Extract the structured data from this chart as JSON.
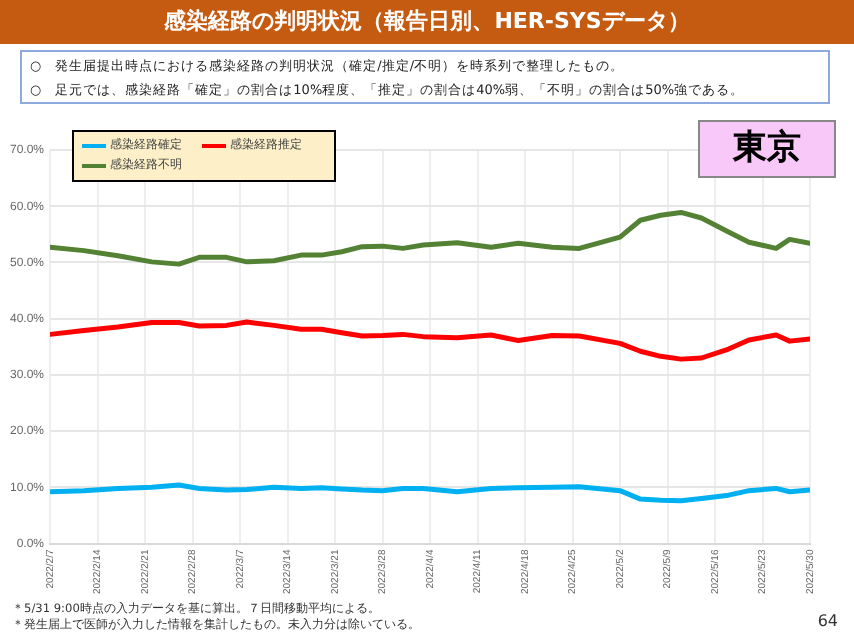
{
  "chart_data": {
    "type": "line",
    "title": "感染経路の判明状況（報告日別、HER-SYSデータ）",
    "annotations": [
      "○　発生届提出時点における感染経路の判明状況（確定/推定/不明）を時系列で整理したもの。",
      "○　足元では、感染経路「確定」の割合は10%程度、「推定」の割合は40%弱、「不明」の割合は50%強である。",
      "東京",
      "＊5/31 9:00時点の入力データを基に算出。７日間移動平均による。",
      "＊発生届上で医師が入力した情報を集計したもの。未入力分は除いている。",
      "64"
    ],
    "x": [
      "2022-02-07",
      "2022-02-12",
      "2022-02-17",
      "2022-02-22",
      "2022-02-26",
      "2022-03-01",
      "2022-03-05",
      "2022-03-08",
      "2022-03-12",
      "2022-03-16",
      "2022-03-19",
      "2022-03-22",
      "2022-03-25",
      "2022-03-28",
      "2022-03-31",
      "2022-04-03",
      "2022-04-08",
      "2022-04-13",
      "2022-04-17",
      "2022-04-22",
      "2022-04-26",
      "2022-05-02",
      "2022-05-05",
      "2022-05-08",
      "2022-05-11",
      "2022-05-14",
      "2022-05-18",
      "2022-05-21",
      "2022-05-25",
      "2022-05-27",
      "2022-05-30"
    ],
    "series": [
      {
        "name": "感染経路確定",
        "color": "#00b0f0",
        "values": [
          9.2,
          9.4,
          9.8,
          10.0,
          10.4,
          9.8,
          9.5,
          9.6,
          10.0,
          9.8,
          9.9,
          9.7,
          9.5,
          9.4,
          9.8,
          9.8,
          9.2,
          9.8,
          9.9,
          10.0,
          10.1,
          9.4,
          7.9,
          7.7,
          7.6,
          8.0,
          8.6,
          9.4,
          9.8,
          9.2,
          9.5
        ]
      },
      {
        "name": "感染経路推定",
        "color": "#ff0000",
        "values": [
          37.2,
          37.9,
          38.5,
          39.3,
          39.3,
          38.7,
          38.8,
          39.4,
          38.8,
          38.1,
          38.1,
          37.5,
          36.9,
          37.0,
          37.2,
          36.8,
          36.6,
          37.1,
          36.1,
          37.0,
          36.9,
          35.6,
          34.2,
          33.3,
          32.8,
          33.0,
          34.6,
          36.2,
          37.1,
          36.0,
          36.4
        ]
      },
      {
        "name": "感染経路不明",
        "color": "#548235",
        "values": [
          52.7,
          52.1,
          51.2,
          50.1,
          49.7,
          50.9,
          50.9,
          50.1,
          50.3,
          51.3,
          51.3,
          51.9,
          52.8,
          52.9,
          52.5,
          53.1,
          53.5,
          52.7,
          53.4,
          52.7,
          52.5,
          54.5,
          57.5,
          58.4,
          58.9,
          57.9,
          55.4,
          53.6,
          52.5,
          54.1,
          53.4
        ]
      }
    ],
    "xlim": [
      "2022-02-07",
      "2022-05-30"
    ],
    "xticks": [
      {
        "value": "2022-02-07",
        "label": "2022/2/7"
      },
      {
        "value": "2022-02-14",
        "label": "2022/2/14"
      },
      {
        "value": "2022-02-21",
        "label": "2022/2/21"
      },
      {
        "value": "2022-02-28",
        "label": "2022/2/28"
      },
      {
        "value": "2022-03-07",
        "label": "2022/3/7"
      },
      {
        "value": "2022-03-14",
        "label": "2022/3/14"
      },
      {
        "value": "2022-03-21",
        "label": "2022/3/21"
      },
      {
        "value": "2022-03-28",
        "label": "2022/3/28"
      },
      {
        "value": "2022-04-04",
        "label": "2022/4/4"
      },
      {
        "value": "2022-04-11",
        "label": "2022/4/11"
      },
      {
        "value": "2022-04-18",
        "label": "2022/4/18"
      },
      {
        "value": "2022-04-25",
        "label": "2022/4/25"
      },
      {
        "value": "2022-05-02",
        "label": "2022/5/2"
      },
      {
        "value": "2022-05-09",
        "label": "2022/5/9"
      },
      {
        "value": "2022-05-16",
        "label": "2022/5/16"
      },
      {
        "value": "2022-05-23",
        "label": "2022/5/23"
      },
      {
        "value": "2022-05-30",
        "label": "2022/5/30"
      }
    ],
    "ylim": [
      0,
      70
    ],
    "yticks": [
      {
        "value": 0,
        "label": "0.0%"
      },
      {
        "value": 10,
        "label": "10.0%"
      },
      {
        "value": 20,
        "label": "20.0%"
      },
      {
        "value": 30,
        "label": "30.0%"
      },
      {
        "value": 40,
        "label": "40.0%"
      },
      {
        "value": 50,
        "label": "50.0%"
      },
      {
        "value": 60,
        "label": "60.0%"
      },
      {
        "value": 70,
        "label": "70.0%"
      }
    ],
    "grid": true,
    "legend": "top left",
    "marker": "none",
    "line_style": "solid"
  }
}
